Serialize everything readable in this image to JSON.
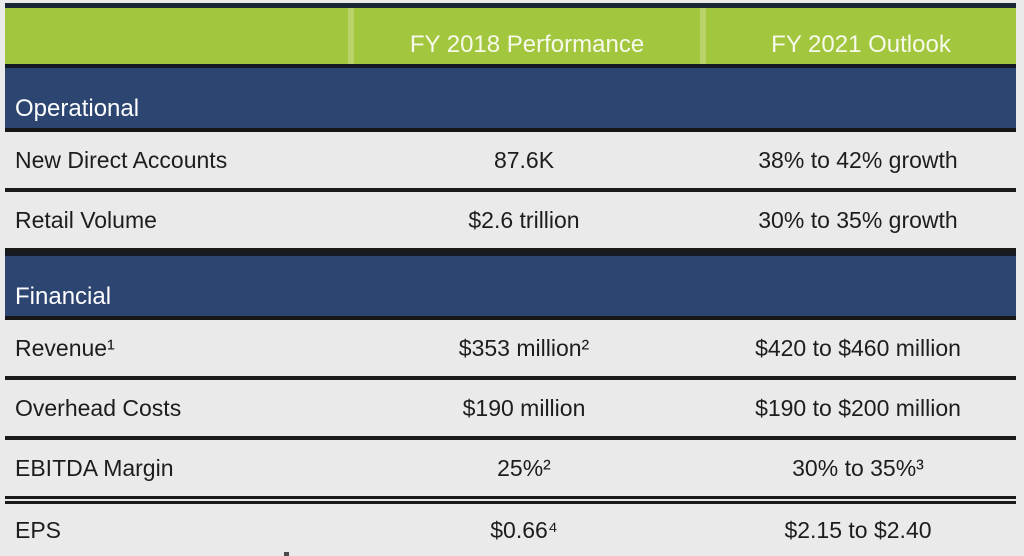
{
  "table": {
    "header": {
      "fy2018_label": "FY 2018 Performance",
      "fy2021_label": "FY 2021 Outlook"
    },
    "sections": [
      {
        "title": "Operational",
        "rows": [
          {
            "label": "New Direct Accounts",
            "fy2018": "87.6K",
            "fy2021": "38% to 42% growth"
          },
          {
            "label": "Retail Volume",
            "fy2018": "$2.6 trillion",
            "fy2021": "30% to 35% growth"
          }
        ]
      },
      {
        "title": "Financial",
        "rows": [
          {
            "label": "Revenue¹",
            "fy2018": "$353 million²",
            "fy2021": "$420 to $460 million"
          },
          {
            "label": "Overhead Costs",
            "fy2018": "$190 million",
            "fy2021": "$190 to $200 million"
          },
          {
            "label": "EBITDA Margin",
            "fy2018": "25%²",
            "fy2021": "30% to 35%³"
          },
          {
            "label": "EPS",
            "fy2018": "$0.66⁴",
            "fy2021": "$2.15 to $2.40"
          }
        ]
      }
    ]
  },
  "colors": {
    "header_green": "#a2c63e",
    "header_seam_green": "#b9d368",
    "section_navy": "#2c4571",
    "divider_black": "#1a1a1a",
    "background_gray": "#eaeaea",
    "header_text": "#f7faeb",
    "body_text": "#1d1d1d"
  },
  "chart_data": {
    "type": "table",
    "title": "FY 2018 Performance vs FY 2021 Outlook",
    "columns": [
      "",
      "FY 2018 Performance",
      "FY 2021 Outlook"
    ],
    "sections": [
      {
        "name": "Operational",
        "rows": [
          [
            "New Direct Accounts",
            "87.6K",
            "38% to 42% growth"
          ],
          [
            "Retail Volume",
            "$2.6 trillion",
            "30% to 35% growth"
          ]
        ]
      },
      {
        "name": "Financial",
        "rows": [
          [
            "Revenue¹",
            "$353 million²",
            "$420 to $460 million"
          ],
          [
            "Overhead Costs",
            "$190 million",
            "$190 to $200 million"
          ],
          [
            "EBITDA Margin",
            "25%²",
            "30% to 35%³"
          ],
          [
            "EPS",
            "$0.66⁴",
            "$2.15 to $2.40"
          ]
        ]
      }
    ]
  }
}
